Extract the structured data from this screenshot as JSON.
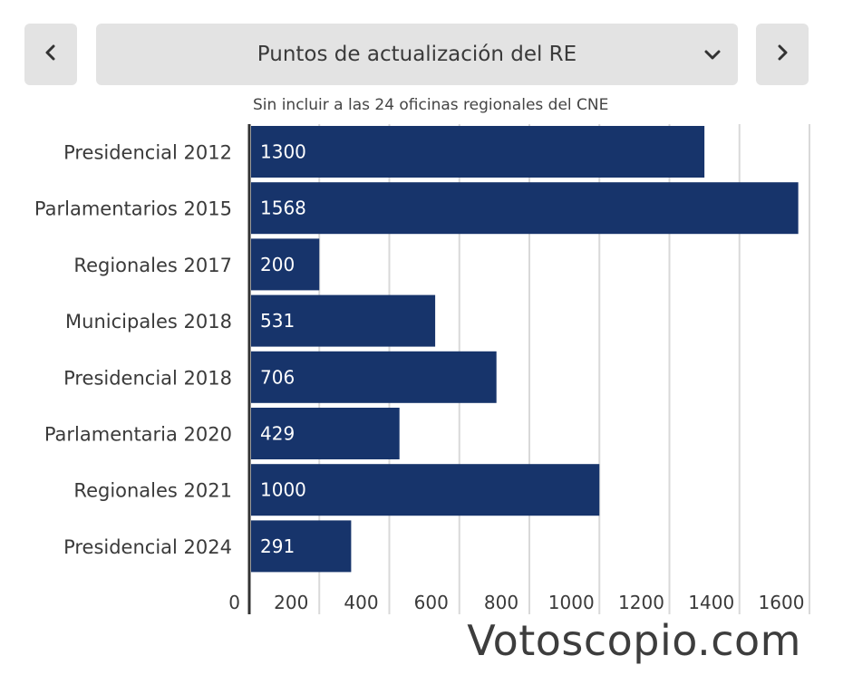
{
  "nav": {
    "prev_icon": "chevron-left-icon",
    "next_icon": "chevron-right-icon",
    "selector_label": "Puntos de actualización del RE",
    "selector_icon": "chevron-down-icon"
  },
  "subtitle": "Sin incluir a las 24 oficinas regionales del CNE",
  "watermark": "Votoscopio.com",
  "colors": {
    "bar": "#17346b",
    "grid": "#d9d9d9",
    "axis": "#333333"
  },
  "chart_data": {
    "type": "bar",
    "orientation": "horizontal",
    "categories": [
      "Presidencial 2012",
      "Parlamentarios 2015",
      "Regionales 2017",
      "Municipales 2018",
      "Presidencial 2018",
      "Parlamentaria 2020",
      "Regionales 2021",
      "Presidencial 2024"
    ],
    "values": [
      1300,
      1568,
      200,
      531,
      706,
      429,
      1000,
      291
    ],
    "xlim": [
      0,
      1600
    ],
    "xticks": [
      0,
      200,
      400,
      600,
      800,
      1000,
      1200,
      1400,
      1600
    ],
    "grid": true,
    "data_labels": true
  }
}
